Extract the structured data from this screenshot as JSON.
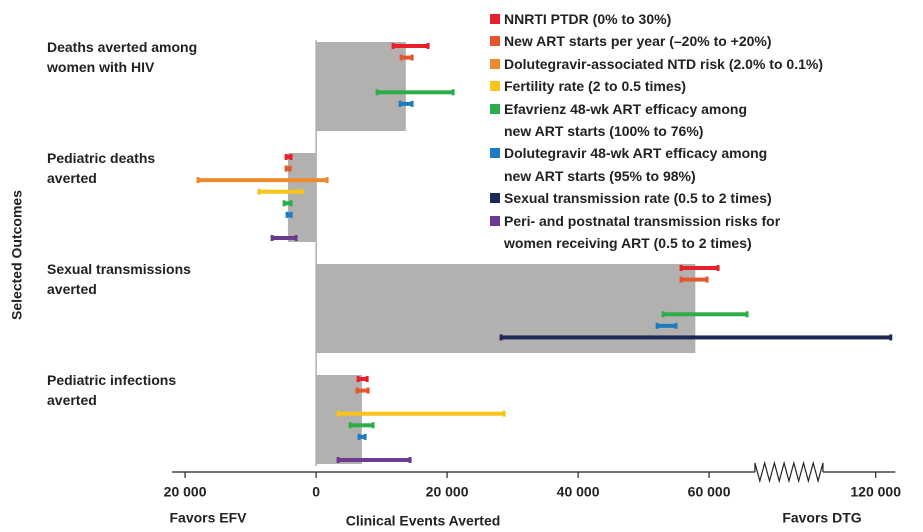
{
  "chart_data": {
    "type": "tornado",
    "ylabel": "Selected Outcomes",
    "xlabel": "Clinical Events Averted",
    "left_note": "Favors EFV",
    "right_note": "Favors DTG",
    "categories": [
      "Deaths averted among\nwomen with HIV",
      "Pediatric deaths\naverted",
      "Sexual transmissions\naverted",
      "Pediatric infections\naverted"
    ],
    "values": [
      13700,
      -4300,
      57900,
      7000
    ],
    "color": "#b3b1b0",
    "xlim": [
      -22000,
      123000
    ],
    "xbreak": [
      67000,
      115000
    ],
    "xticks": [
      {
        "value": -20000,
        "label": "20 000"
      },
      0,
      {
        "value": 20000,
        "label": "20 000"
      },
      {
        "value": 40000,
        "label": "40 000"
      },
      {
        "value": 60000,
        "label": "60 000"
      },
      {
        "value": 120000,
        "label": "120 000"
      }
    ],
    "series": [
      {
        "name": "NNRTI PTDR (0% to 30%)",
        "color": "#e8202a",
        "low": [
          11760,
          -4580,
          55720,
          6410
        ],
        "high": [
          17100,
          -3820,
          61370,
          7790
        ]
      },
      {
        "name": "New ART starts per year (–20% to +20%)",
        "color": "#e4572a",
        "low": [
          12980,
          -4580,
          55720,
          6260
        ],
        "high": [
          14660,
          -3970,
          59690,
          7940
        ]
      },
      {
        "name": "Dolutegravir-associated NTD risk (2.0% to 0.1%)",
        "color": "#ee8a2e",
        "low": [
          null,
          -18020,
          null,
          null
        ],
        "high": [
          null,
          1680,
          null,
          null
        ]
      },
      {
        "name": "Fertility rate (2 to 0.5 times)",
        "color": "#f9c31a",
        "low": [
          null,
          -8700,
          null,
          3360
        ],
        "high": [
          null,
          -2140,
          null,
          28700
        ]
      },
      {
        "name": "Efavrienz 48-wk ART efficacy among\nnew ART starts (100% to 76%)",
        "color": "#2bae4a",
        "low": [
          9310,
          -4890,
          52980,
          5190
        ],
        "high": [
          20920,
          -3820,
          65800,
          8700
        ]
      },
      {
        "name": "Dolutegravir 48-wk ART efficacy among\nnew ART starts (95% to 98%)",
        "color": "#1f7bc1",
        "low": [
          12820,
          -4430,
          52060,
          6560
        ],
        "high": [
          14660,
          -3820,
          54960,
          7480
        ]
      },
      {
        "name": "Sexual transmission rate (0.5 to 2 times)",
        "color": "#1c2857",
        "low": [
          null,
          null,
          28240,
          null
        ],
        "high": [
          null,
          null,
          122300,
          null
        ]
      },
      {
        "name": "Peri- and postnatal transmission risks for\nwomen receiving ART (0.5 to 2 times)",
        "color": "#6c3a91",
        "low": [
          null,
          -6720,
          null,
          3360
        ],
        "high": [
          null,
          -3050,
          null,
          14350
        ]
      }
    ]
  }
}
